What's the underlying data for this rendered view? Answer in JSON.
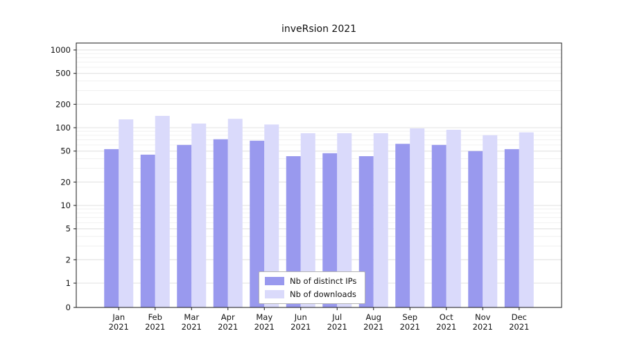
{
  "chart_data": {
    "type": "bar",
    "title": "inveRsion 2021",
    "categories": [
      "Jan",
      "Feb",
      "Mar",
      "Apr",
      "May",
      "Jun",
      "Jul",
      "Aug",
      "Sep",
      "Oct",
      "Nov",
      "Dec"
    ],
    "year_label": "2021",
    "series": [
      {
        "name": "Nb of distinct IPs",
        "color": "#9999ee",
        "values": [
          53,
          45,
          60,
          71,
          68,
          43,
          47,
          43,
          62,
          60,
          50,
          53
        ]
      },
      {
        "name": "Nb of downloads",
        "color": "#dadafb",
        "values": [
          128,
          142,
          113,
          130,
          110,
          85,
          85,
          85,
          98,
          94,
          80,
          87
        ]
      }
    ],
    "yscale": "log",
    "ylim": [
      0,
      1000
    ],
    "yticks": [
      {
        "v": 1000,
        "label": "1000"
      },
      {
        "v": 500,
        "label": "500"
      },
      {
        "v": 200,
        "label": "200"
      },
      {
        "v": 100,
        "label": "100"
      },
      {
        "v": 50,
        "label": "50"
      },
      {
        "v": 20,
        "label": "20"
      },
      {
        "v": 10,
        "label": "10"
      },
      {
        "v": 5,
        "label": "5"
      },
      {
        "v": 2,
        "label": "2"
      },
      {
        "v": 1,
        "label": "1"
      },
      {
        "v": 0,
        "label": "0"
      }
    ],
    "grid": true,
    "legend_position": "lower center",
    "colors": {
      "major_grid": "#e2e2e2",
      "minor_grid": "#f0f0f0",
      "spine": "#1a1a1a",
      "tick_text": "#111111"
    }
  }
}
